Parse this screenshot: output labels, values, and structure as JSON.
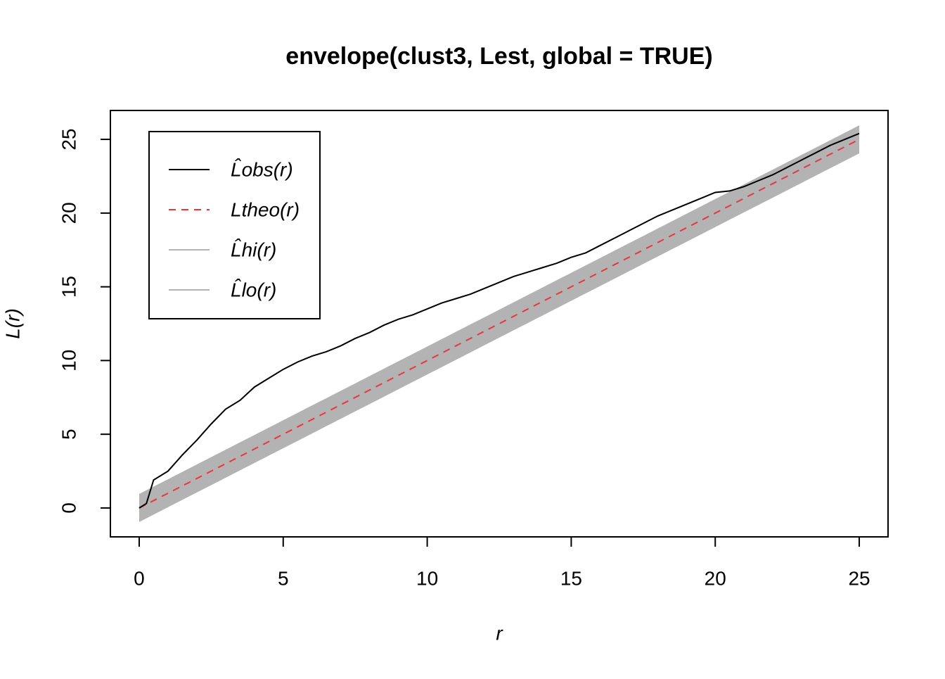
{
  "chart_data": {
    "type": "line",
    "title": "envelope(clust3, Lest, global = TRUE)",
    "x_label": "r",
    "y_label": "L(r)",
    "x": [
      0,
      0.25,
      0.5,
      1,
      1.5,
      2,
      2.5,
      3,
      3.5,
      4,
      4.5,
      5,
      5.5,
      6,
      6.5,
      7,
      7.5,
      8,
      8.5,
      9,
      9.5,
      10,
      10.5,
      11,
      11.5,
      12,
      12.5,
      13,
      13.5,
      14,
      14.5,
      15,
      15.5,
      16,
      16.5,
      17,
      17.5,
      18,
      18.5,
      19,
      19.5,
      20,
      20.5,
      21,
      21.5,
      22,
      22.5,
      23,
      23.5,
      24,
      24.5,
      25
    ],
    "series": [
      {
        "name": "L̂obs(r)",
        "color": "#000000",
        "dash": false,
        "values": [
          0,
          0.3,
          1.9,
          2.5,
          3.6,
          4.6,
          5.7,
          6.7,
          7.3,
          8.2,
          8.8,
          9.4,
          9.9,
          10.3,
          10.6,
          11.0,
          11.5,
          11.9,
          12.4,
          12.8,
          13.1,
          13.5,
          13.9,
          14.2,
          14.5,
          14.9,
          15.3,
          15.7,
          16.0,
          16.3,
          16.6,
          17.0,
          17.3,
          17.8,
          18.3,
          18.8,
          19.3,
          19.8,
          20.2,
          20.6,
          21.0,
          21.4,
          21.5,
          21.8,
          22.2,
          22.6,
          23.1,
          23.6,
          24.1,
          24.6,
          25.0,
          25.4
        ]
      },
      {
        "name": "Ltheo(r)",
        "color": "#e8383d",
        "dash": true,
        "values": [
          0,
          0.25,
          0.5,
          1,
          1.5,
          2,
          2.5,
          3,
          3.5,
          4,
          4.5,
          5,
          5.5,
          6,
          6.5,
          7,
          7.5,
          8,
          8.5,
          9,
          9.5,
          10,
          10.5,
          11,
          11.5,
          12,
          12.5,
          13,
          13.5,
          14,
          14.5,
          15,
          15.5,
          16,
          16.5,
          17,
          17.5,
          18,
          18.5,
          19,
          19.5,
          20,
          20.5,
          21,
          21.5,
          22,
          22.5,
          23,
          23.5,
          24,
          24.5,
          25
        ]
      },
      {
        "name": "L̂hi(r)",
        "color": "#b3b3b3",
        "dash": false,
        "values": [
          0.95,
          1.2,
          1.45,
          1.95,
          2.45,
          2.95,
          3.45,
          3.95,
          4.45,
          4.95,
          5.45,
          5.95,
          6.45,
          6.95,
          7.45,
          7.95,
          8.45,
          8.95,
          9.45,
          9.95,
          10.45,
          10.95,
          11.45,
          11.95,
          12.45,
          12.95,
          13.45,
          13.95,
          14.45,
          14.95,
          15.45,
          15.95,
          16.45,
          16.95,
          17.45,
          17.95,
          18.45,
          18.95,
          19.45,
          19.95,
          20.45,
          20.95,
          21.45,
          21.95,
          22.45,
          22.95,
          23.45,
          23.95,
          24.45,
          24.95,
          25.45,
          25.95
        ]
      },
      {
        "name": "L̂lo(r)",
        "color": "#b3b3b3",
        "dash": false,
        "values": [
          -0.95,
          -0.7,
          -0.45,
          0.05,
          0.55,
          1.05,
          1.55,
          2.05,
          2.55,
          3.05,
          3.55,
          4.05,
          4.55,
          5.05,
          5.55,
          6.05,
          6.55,
          7.05,
          7.55,
          8.05,
          8.55,
          9.05,
          9.55,
          10.05,
          10.55,
          11.05,
          11.55,
          12.05,
          12.55,
          13.05,
          13.55,
          14.05,
          14.55,
          15.05,
          15.55,
          16.05,
          16.55,
          17.05,
          17.55,
          18.05,
          18.55,
          19.05,
          19.55,
          20.05,
          20.55,
          21.05,
          21.55,
          22.05,
          22.55,
          23.05,
          23.55,
          24.05
        ]
      }
    ],
    "xlim": [
      -1,
      26
    ],
    "ylim": [
      -1.96,
      26.96
    ],
    "xticks": [
      0,
      5,
      10,
      15,
      20,
      25
    ],
    "yticks": [
      0,
      5,
      10,
      15,
      20,
      25
    ],
    "legend": "top-left"
  }
}
